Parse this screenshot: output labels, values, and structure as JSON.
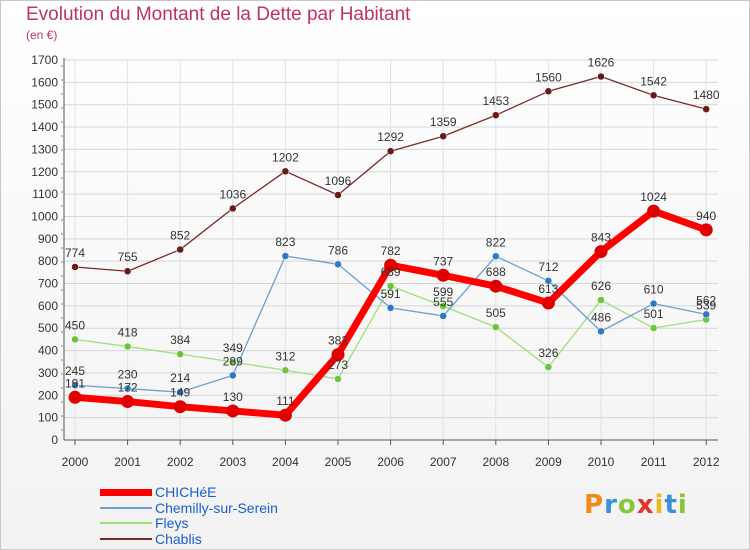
{
  "title": "Evolution du Montant de la Dette par Habitant",
  "unit": "(en €)",
  "logo": "Proxiti",
  "chart_data": {
    "type": "line",
    "title": "Evolution du Montant de la Dette par Habitant",
    "ylabel": "(en €)",
    "xlabel": "",
    "x": [
      "2000",
      "2001",
      "2002",
      "2003",
      "2004",
      "2005",
      "2006",
      "2007",
      "2008",
      "2009",
      "2010",
      "2011",
      "2012"
    ],
    "ylim": [
      0,
      1700
    ],
    "yticks": [
      0,
      100,
      200,
      300,
      400,
      500,
      600,
      700,
      800,
      900,
      1000,
      1100,
      1200,
      1300,
      1400,
      1500,
      1600,
      1700
    ],
    "grid": true,
    "legend_position": "bottom-left",
    "series": [
      {
        "name": "CHICHéE",
        "color": "#ff0000",
        "values": [
          191,
          172,
          149,
          130,
          111,
          382,
          782,
          737,
          688,
          613,
          843,
          1024,
          940
        ]
      },
      {
        "name": "Chemilly-sur-Serein",
        "color": "#6a9fd4",
        "values": [
          245,
          230,
          214,
          289,
          823,
          786,
          591,
          555,
          822,
          712,
          486,
          610,
          562
        ]
      },
      {
        "name": "Fleys",
        "color": "#9ee07a",
        "values": [
          450,
          418,
          384,
          349,
          312,
          273,
          689,
          599,
          505,
          326,
          626,
          501,
          539
        ]
      },
      {
        "name": "Chablis",
        "color": "#7a2a2a",
        "values": [
          774,
          755,
          852,
          1036,
          1202,
          1096,
          1292,
          1359,
          1453,
          1560,
          1626,
          1542,
          1480
        ]
      }
    ]
  }
}
